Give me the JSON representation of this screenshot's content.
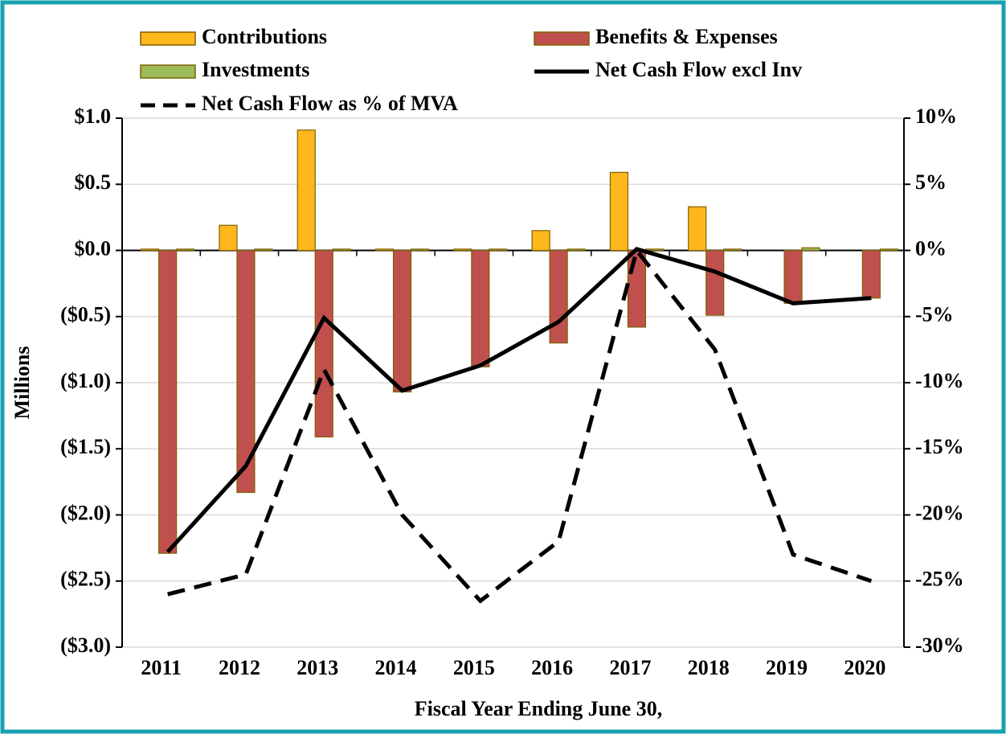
{
  "chart_data": {
    "type": "bar",
    "categories": [
      "2011",
      "2012",
      "2013",
      "2014",
      "2015",
      "2016",
      "2017",
      "2018",
      "2019",
      "2020"
    ],
    "series": [
      {
        "name": "Contributions",
        "type": "bar",
        "color": "#ffb81c",
        "values": [
          0.01,
          0.19,
          0.91,
          0.01,
          0.01,
          0.15,
          0.59,
          0.33,
          0,
          0
        ]
      },
      {
        "name": "Benefits & Expenses",
        "type": "bar",
        "color": "#c0504d",
        "values": [
          -2.29,
          -1.83,
          -1.41,
          -1.07,
          -0.88,
          -0.7,
          -0.58,
          -0.49,
          -0.4,
          -0.36
        ]
      },
      {
        "name": "Investments",
        "type": "bar",
        "color": "#9bbb59",
        "values": [
          0.01,
          0.01,
          0.01,
          0.01,
          0.01,
          0.01,
          0.01,
          0.01,
          0.02,
          0.01
        ]
      },
      {
        "name": "Net Cash Flow excl Inv",
        "type": "line",
        "color": "#000000",
        "values": [
          -2.28,
          -1.63,
          -0.51,
          -1.06,
          -0.87,
          -0.54,
          0.01,
          -0.16,
          -0.4,
          -0.36
        ]
      },
      {
        "name": "Net Cash Flow as % of MVA",
        "type": "line",
        "dashed": true,
        "axis": "y2",
        "color": "#000000",
        "values": [
          -26,
          -24.5,
          -9,
          -20,
          -26.5,
          -22,
          0,
          -7.5,
          -23,
          -25
        ]
      }
    ],
    "ylabel": "Millions",
    "xlabel": "Fiscal Year Ending  June 30,",
    "ylim": [
      -3,
      1
    ],
    "yticks": [
      {
        "value": 1,
        "label": "$1.0"
      },
      {
        "value": 0.5,
        "label": "$0.5"
      },
      {
        "value": 0,
        "label": "$0.0"
      },
      {
        "value": -0.5,
        "label": "($0.5)"
      },
      {
        "value": -1,
        "label": "($1.0)"
      },
      {
        "value": -1.5,
        "label": "($1.5)"
      },
      {
        "value": -2,
        "label": "($2.0)"
      },
      {
        "value": -2.5,
        "label": "($2.5)"
      },
      {
        "value": -3,
        "label": "($3.0)"
      }
    ],
    "y2lim": [
      -30,
      10
    ],
    "y2ticks": [
      {
        "value": 10,
        "label": "10%"
      },
      {
        "value": 5,
        "label": "5%"
      },
      {
        "value": 0,
        "label": "0%"
      },
      {
        "value": -5,
        "label": "-5%"
      },
      {
        "value": -10,
        "label": "-10%"
      },
      {
        "value": -15,
        "label": "-15%"
      },
      {
        "value": -20,
        "label": "-20%"
      },
      {
        "value": -25,
        "label": "-25%"
      },
      {
        "value": -30,
        "label": "-30%"
      }
    ],
    "grid": true
  }
}
